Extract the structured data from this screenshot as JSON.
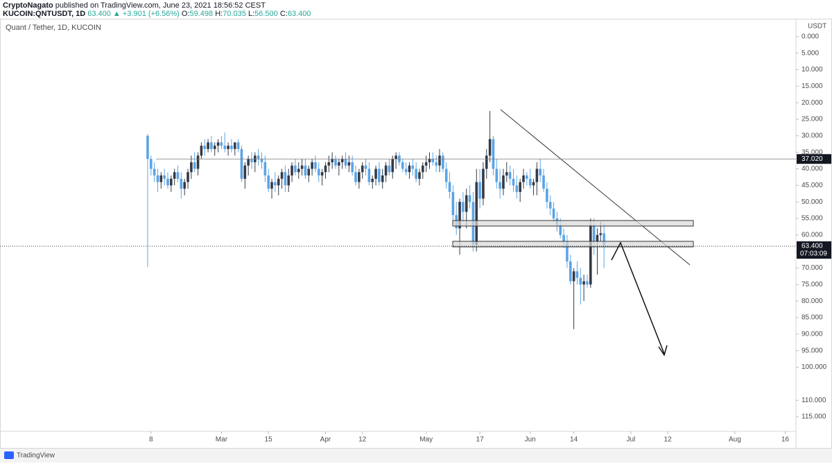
{
  "header": {
    "publisher": "CryptoNagato",
    "published_text": "published on TradingView.com, June 23, 2021 18:56:52 CEST",
    "symbol": "KUCOIN:QNTUSDT, 1D",
    "last_change": "63.400 ▲ +3.901 (+6.56%)",
    "o_label": "O:",
    "o_value": "59.498",
    "h_label": "H:",
    "h_value": "70.035",
    "l_label": "L:",
    "l_value": "56.500",
    "c_label": "C:",
    "c_value": "63.400"
  },
  "footer": {
    "brand": "TradingView"
  },
  "chart_data": {
    "type": "candlestick",
    "title": "Quant / Tether, 1D, KUCOIN",
    "y_axis_label": "USDT",
    "inverted": true,
    "up_color": "#5ba4e6",
    "down_color": "#363a45",
    "xlim": [
      -6,
      231.2
    ],
    "ylim": [
      -5.2,
      119.4
    ],
    "xticks": [
      {
        "value": 39,
        "label": "8"
      },
      {
        "value": 60,
        "label": "Mar"
      },
      {
        "value": 74,
        "label": "15"
      },
      {
        "value": 91,
        "label": "Apr"
      },
      {
        "value": 102,
        "label": "12"
      },
      {
        "value": 121,
        "label": "May"
      },
      {
        "value": 137,
        "label": "17"
      },
      {
        "value": 152,
        "label": "Jun"
      },
      {
        "value": 165,
        "label": "14"
      },
      {
        "value": 182,
        "label": "Jul"
      },
      {
        "value": 193,
        "label": "12"
      },
      {
        "value": 213,
        "label": "Aug"
      },
      {
        "value": 228,
        "label": "16"
      }
    ],
    "yticks": [
      {
        "value": 0,
        "label": "0.000"
      },
      {
        "value": 5,
        "label": "5.000"
      },
      {
        "value": 10,
        "label": "10.000"
      },
      {
        "value": 15,
        "label": "15.000"
      },
      {
        "value": 20,
        "label": "20.000"
      },
      {
        "value": 25,
        "label": "25.000"
      },
      {
        "value": 30,
        "label": "30.000"
      },
      {
        "value": 35,
        "label": "35.000"
      },
      {
        "value": 40,
        "label": "40.000"
      },
      {
        "value": 45,
        "label": "45.000"
      },
      {
        "value": 50,
        "label": "50.000"
      },
      {
        "value": 55,
        "label": "55.000"
      },
      {
        "value": 60,
        "label": "60.000"
      },
      {
        "value": 65,
        "label": "65.000"
      },
      {
        "value": 70,
        "label": "70.000"
      },
      {
        "value": 75,
        "label": "75.000"
      },
      {
        "value": 80,
        "label": "80.000"
      },
      {
        "value": 85,
        "label": "85.000"
      },
      {
        "value": 90,
        "label": "90.000"
      },
      {
        "value": 95,
        "label": "95.000"
      },
      {
        "value": 100,
        "label": "100.000"
      },
      {
        "value": 110,
        "label": "110.000"
      },
      {
        "value": 115,
        "label": "115.000"
      }
    ],
    "price_lines": [
      {
        "value": 37.02,
        "label": "37.020"
      },
      {
        "value": 63.4,
        "label": "63.400",
        "countdown": "07:03:09"
      }
    ],
    "x": [
      38,
      39,
      40,
      41,
      42,
      43,
      44,
      45,
      46,
      47,
      48,
      49,
      50,
      51,
      52,
      53,
      54,
      55,
      56,
      57,
      58,
      59,
      60,
      61,
      62,
      63,
      64,
      65,
      66,
      67,
      68,
      69,
      70,
      71,
      72,
      73,
      74,
      75,
      76,
      77,
      78,
      79,
      80,
      81,
      82,
      83,
      84,
      85,
      86,
      87,
      88,
      89,
      90,
      91,
      92,
      93,
      94,
      95,
      96,
      97,
      98,
      99,
      100,
      101,
      102,
      103,
      104,
      105,
      106,
      107,
      108,
      109,
      110,
      111,
      112,
      113,
      114,
      115,
      116,
      117,
      118,
      119,
      120,
      121,
      122,
      123,
      124,
      125,
      126,
      127,
      128,
      129,
      130,
      131,
      132,
      133,
      134,
      135,
      136,
      137,
      138,
      139,
      140,
      141,
      142,
      143,
      144,
      145,
      146,
      147,
      148,
      149,
      150,
      151,
      152,
      153,
      154,
      155,
      156,
      157,
      158,
      159,
      160,
      161,
      162,
      163,
      164,
      165,
      166,
      167,
      168,
      169,
      170,
      171,
      172,
      173,
      174
    ],
    "ohlc": [
      [
        30,
        69.7,
        29.5,
        37
      ],
      [
        37,
        42,
        36,
        40
      ],
      [
        40,
        44,
        38,
        42
      ],
      [
        42,
        47,
        40,
        44
      ],
      [
        44,
        46,
        41,
        42
      ],
      [
        42,
        45,
        40,
        43
      ],
      [
        43,
        46,
        41,
        45
      ],
      [
        45,
        47,
        42,
        43
      ],
      [
        43,
        45,
        40,
        41
      ],
      [
        41,
        44,
        39,
        43
      ],
      [
        43,
        49,
        41,
        46
      ],
      [
        46,
        48,
        43,
        44
      ],
      [
        44,
        46,
        40,
        41
      ],
      [
        41,
        43,
        36,
        38
      ],
      [
        38,
        41,
        35,
        40
      ],
      [
        40,
        42,
        35,
        36
      ],
      [
        36,
        37,
        32,
        33
      ],
      [
        33,
        36,
        31,
        34
      ],
      [
        34,
        35,
        31,
        32
      ],
      [
        32,
        35,
        30,
        34
      ],
      [
        34,
        36,
        32,
        33
      ],
      [
        33,
        35,
        31,
        32
      ],
      [
        32,
        34,
        30,
        33
      ],
      [
        33,
        35,
        29,
        34
      ],
      [
        34,
        36,
        32,
        33
      ],
      [
        33,
        35,
        31,
        34
      ],
      [
        34,
        36,
        32,
        32
      ],
      [
        32,
        35,
        31,
        34
      ],
      [
        34,
        44,
        33,
        43
      ],
      [
        43,
        46,
        38,
        39
      ],
      [
        39,
        42,
        36,
        37
      ],
      [
        37,
        40,
        35,
        38
      ],
      [
        38,
        41,
        35,
        36
      ],
      [
        36,
        39,
        34,
        37
      ],
      [
        37,
        40,
        35,
        38
      ],
      [
        38,
        44,
        36,
        42
      ],
      [
        42,
        47,
        40,
        46
      ],
      [
        46,
        49,
        43,
        44
      ],
      [
        44,
        47,
        41,
        45
      ],
      [
        45,
        48,
        42,
        43
      ],
      [
        43,
        46,
        40,
        41
      ],
      [
        41,
        47,
        39,
        45
      ],
      [
        45,
        47,
        40,
        42
      ],
      [
        42,
        44,
        38,
        39
      ],
      [
        39,
        42,
        37,
        41
      ],
      [
        41,
        43,
        38,
        40
      ],
      [
        40,
        42,
        37,
        39
      ],
      [
        39,
        43,
        37,
        42
      ],
      [
        42,
        44,
        39,
        40
      ],
      [
        40,
        42,
        37,
        38
      ],
      [
        38,
        41,
        36,
        40
      ],
      [
        40,
        44,
        38,
        42
      ],
      [
        42,
        45,
        40,
        41
      ],
      [
        41,
        43,
        38,
        39
      ],
      [
        39,
        41,
        36,
        38
      ],
      [
        38,
        40,
        35,
        37
      ],
      [
        37,
        40,
        36,
        39
      ],
      [
        39,
        42,
        37,
        38
      ],
      [
        38,
        40,
        36,
        37
      ],
      [
        37,
        40,
        35,
        39
      ],
      [
        39,
        41,
        36,
        38
      ],
      [
        38,
        42,
        36,
        41
      ],
      [
        41,
        45,
        39,
        44
      ],
      [
        44,
        46,
        40,
        41
      ],
      [
        41,
        43,
        38,
        39
      ],
      [
        39,
        42,
        37,
        40
      ],
      [
        40,
        45,
        38,
        44
      ],
      [
        44,
        46,
        42,
        43
      ],
      [
        43,
        45,
        39,
        40
      ],
      [
        40,
        45,
        38,
        44
      ],
      [
        44,
        46,
        40,
        42
      ],
      [
        42,
        44,
        38,
        39
      ],
      [
        39,
        42,
        37,
        41
      ],
      [
        41,
        43,
        36,
        37
      ],
      [
        37,
        40,
        35,
        36
      ],
      [
        36,
        39,
        35,
        38
      ],
      [
        38,
        41,
        37,
        40
      ],
      [
        40,
        42,
        38,
        41
      ],
      [
        41,
        43,
        38,
        39
      ],
      [
        39,
        42,
        37,
        40
      ],
      [
        40,
        44,
        38,
        43
      ],
      [
        43,
        45,
        40,
        41
      ],
      [
        41,
        43,
        38,
        39
      ],
      [
        39,
        41,
        36,
        38
      ],
      [
        38,
        40,
        35,
        37
      ],
      [
        37,
        39,
        35,
        38
      ],
      [
        38,
        41,
        36,
        39
      ],
      [
        39,
        41,
        34,
        36
      ],
      [
        36,
        41,
        35,
        40
      ],
      [
        40,
        46,
        38,
        44
      ],
      [
        44,
        49,
        41,
        47
      ],
      [
        47,
        56,
        45,
        54
      ],
      [
        54,
        60,
        50,
        58
      ],
      [
        58,
        66,
        49,
        50
      ],
      [
        50,
        56,
        47,
        53
      ],
      [
        53,
        58,
        46,
        48
      ],
      [
        48,
        52,
        45,
        50
      ],
      [
        50,
        65,
        47,
        63
      ],
      [
        63,
        65,
        40,
        44
      ],
      [
        44,
        52,
        40,
        49
      ],
      [
        49,
        51,
        38,
        40
      ],
      [
        40,
        43,
        34,
        36
      ],
      [
        36,
        38,
        22.5,
        31
      ],
      [
        31,
        42,
        30,
        40
      ],
      [
        40,
        46,
        37,
        44
      ],
      [
        44,
        49,
        40,
        46
      ],
      [
        46,
        48,
        40,
        42
      ],
      [
        42,
        44,
        38,
        41
      ],
      [
        41,
        45,
        39,
        43
      ],
      [
        43,
        47,
        40,
        45
      ],
      [
        45,
        49,
        42,
        47
      ],
      [
        47,
        50,
        43,
        44
      ],
      [
        44,
        46,
        40,
        42
      ],
      [
        42,
        45,
        41,
        43
      ],
      [
        43,
        46,
        40,
        45
      ],
      [
        45,
        48,
        43,
        44
      ],
      [
        44,
        48,
        38,
        40
      ],
      [
        40,
        44,
        37,
        42
      ],
      [
        42,
        47,
        40,
        46
      ],
      [
        46,
        52,
        44,
        50
      ],
      [
        50,
        54,
        48,
        52
      ],
      [
        52,
        56,
        50,
        55
      ],
      [
        55,
        59,
        53,
        57
      ],
      [
        57,
        61,
        55,
        60
      ],
      [
        60,
        64,
        58,
        62
      ],
      [
        62,
        70,
        60,
        68
      ],
      [
        68,
        75,
        66,
        74
      ],
      [
        74,
        88.5,
        70,
        71
      ],
      [
        71,
        75,
        68,
        73
      ],
      [
        73,
        81,
        70,
        75
      ],
      [
        75,
        80,
        72,
        74
      ],
      [
        74,
        76,
        72,
        75
      ],
      [
        75,
        76,
        55,
        57
      ],
      [
        57,
        66,
        55,
        62
      ],
      [
        62,
        72,
        58,
        60
      ],
      [
        60,
        62,
        56,
        59.498
      ],
      [
        59.498,
        70.035,
        56.5,
        63.4
      ]
    ]
  }
}
